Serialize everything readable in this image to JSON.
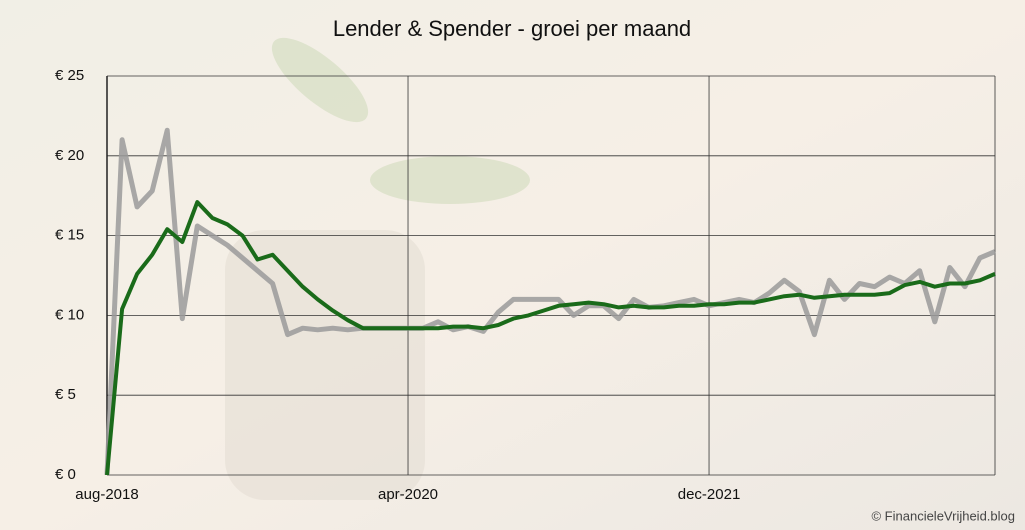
{
  "chart_data": {
    "type": "line",
    "title": "Lender & Spender - groei per maand",
    "credit": "© FinancieleVrijheid.blog",
    "categories": [
      "aug-2018",
      null,
      null,
      null,
      null,
      null,
      null,
      null,
      null,
      null,
      null,
      null,
      null,
      null,
      null,
      null,
      null,
      null,
      null,
      null,
      "apr-2020",
      null,
      null,
      null,
      null,
      null,
      null,
      null,
      null,
      null,
      null,
      null,
      null,
      null,
      null,
      null,
      null,
      null,
      null,
      null,
      "dec-2021",
      null,
      null,
      null,
      null,
      null,
      null,
      null,
      null,
      null,
      null,
      null,
      null,
      null,
      null,
      null,
      null,
      null,
      null,
      null
    ],
    "series": [
      {
        "color": "#9a9a9a",
        "values": [
          0,
          21,
          16.8,
          17.8,
          21.6,
          9.8,
          15.6,
          15,
          14.4,
          13.6,
          12.8,
          12,
          8.8,
          9.2,
          9.1,
          9.2,
          9.1,
          9.2,
          9.2,
          9.2,
          9.2,
          9.2,
          9.6,
          9.1,
          9.3,
          9,
          10.2,
          11,
          11,
          11,
          11,
          10,
          10.6,
          10.6,
          9.8,
          11,
          10.5,
          10.6,
          10.8,
          11,
          10.6,
          10.8,
          11,
          10.8,
          11.4,
          12.2,
          11.5,
          8.8,
          12.2,
          11,
          12,
          11.8,
          12.4,
          12,
          12.8,
          9.6,
          13,
          11.8,
          13.6,
          14
        ]
      },
      {
        "color": "#1a6b1a",
        "values": [
          0,
          10.4,
          12.6,
          13.8,
          15.4,
          14.6,
          17.1,
          16.1,
          15.7,
          15,
          13.5,
          13.8,
          12.8,
          11.8,
          11,
          10.3,
          9.7,
          9.2,
          9.2,
          9.2,
          9.2,
          9.2,
          9.2,
          9.3,
          9.3,
          9.2,
          9.4,
          9.8,
          10,
          10.3,
          10.6,
          10.7,
          10.8,
          10.7,
          10.5,
          10.6,
          10.5,
          10.5,
          10.6,
          10.6,
          10.7,
          10.7,
          10.8,
          10.8,
          11,
          11.2,
          11.3,
          11.1,
          11.2,
          11.3,
          11.3,
          11.3,
          11.4,
          11.9,
          12.1,
          11.8,
          12,
          12,
          12.2,
          12.6
        ]
      }
    ],
    "ylim": [
      0,
      25
    ],
    "yticks": [
      {
        "value": 0,
        "label": "€ 0"
      },
      {
        "value": 5,
        "label": "€ 5"
      },
      {
        "value": 10,
        "label": "€ 10"
      },
      {
        "value": 15,
        "label": "€ 15"
      },
      {
        "value": 20,
        "label": "€ 20"
      },
      {
        "value": 25,
        "label": "€ 25"
      }
    ],
    "grid": true
  }
}
